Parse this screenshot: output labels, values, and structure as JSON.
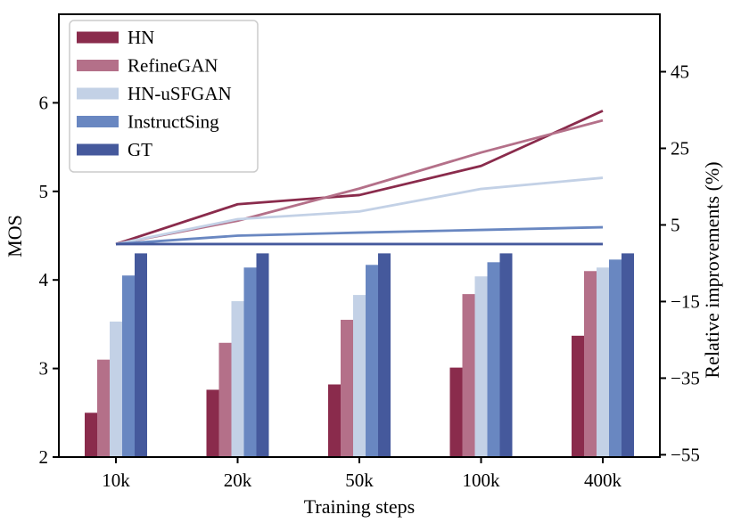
{
  "figure": {
    "xlabel": "Training steps",
    "ylabel_left": "MOS",
    "ylabel_right": "Relative improvements (%)"
  },
  "chart_data": {
    "type": "bar+line",
    "categories": [
      "10k",
      "20k",
      "50k",
      "100k",
      "400k"
    ],
    "series": [
      {
        "name": "HN",
        "color": "#8A2B4C",
        "mos": [
          2.5,
          2.76,
          2.82,
          3.01,
          3.37
        ],
        "improvement_pct": [
          0,
          10.4,
          12.8,
          20.4,
          34.8
        ]
      },
      {
        "name": "RefineGAN",
        "color": "#B47089",
        "mos": [
          3.1,
          3.29,
          3.55,
          3.84,
          4.1
        ],
        "improvement_pct": [
          0,
          6.1,
          14.5,
          23.9,
          32.3
        ]
      },
      {
        "name": "HN-uSFGAN",
        "color": "#C3D1E6",
        "mos": [
          3.53,
          3.76,
          3.83,
          4.04,
          4.14
        ],
        "improvement_pct": [
          0,
          6.5,
          8.5,
          14.4,
          17.3
        ]
      },
      {
        "name": "InstructSing",
        "color": "#6987C1",
        "mos": [
          4.05,
          4.14,
          4.17,
          4.2,
          4.23
        ],
        "improvement_pct": [
          0,
          2.2,
          3.0,
          3.7,
          4.4
        ]
      },
      {
        "name": "GT",
        "color": "#45599C",
        "mos": [
          4.3,
          4.3,
          4.3,
          4.3,
          4.3
        ],
        "improvement_pct": [
          0,
          0,
          0,
          0,
          0
        ]
      }
    ],
    "xlabel": "Training steps",
    "ylabel_left": "MOS",
    "ylabel_right": "Relative improvements (%)",
    "ylim_left": [
      2,
      7
    ],
    "ylim_right": [
      -55.6,
      60
    ],
    "yticks_left": [
      {
        "value": 2,
        "label": "2"
      },
      {
        "value": 3,
        "label": "3"
      },
      {
        "value": 4,
        "label": "4"
      },
      {
        "value": 5,
        "label": "5"
      },
      {
        "value": 6,
        "label": "6"
      }
    ],
    "yticks_right": [
      {
        "value": 45,
        "label": "45"
      },
      {
        "value": 25,
        "label": "25"
      },
      {
        "value": 5,
        "label": "5"
      },
      {
        "value": -15,
        "label": "−15"
      },
      {
        "value": -35,
        "label": "−35"
      },
      {
        "value": -55,
        "label": "−55"
      }
    ],
    "legend_position": "upper-left",
    "grid": false,
    "axis_color": "#000000",
    "legend_border_color": "#cccccc"
  }
}
